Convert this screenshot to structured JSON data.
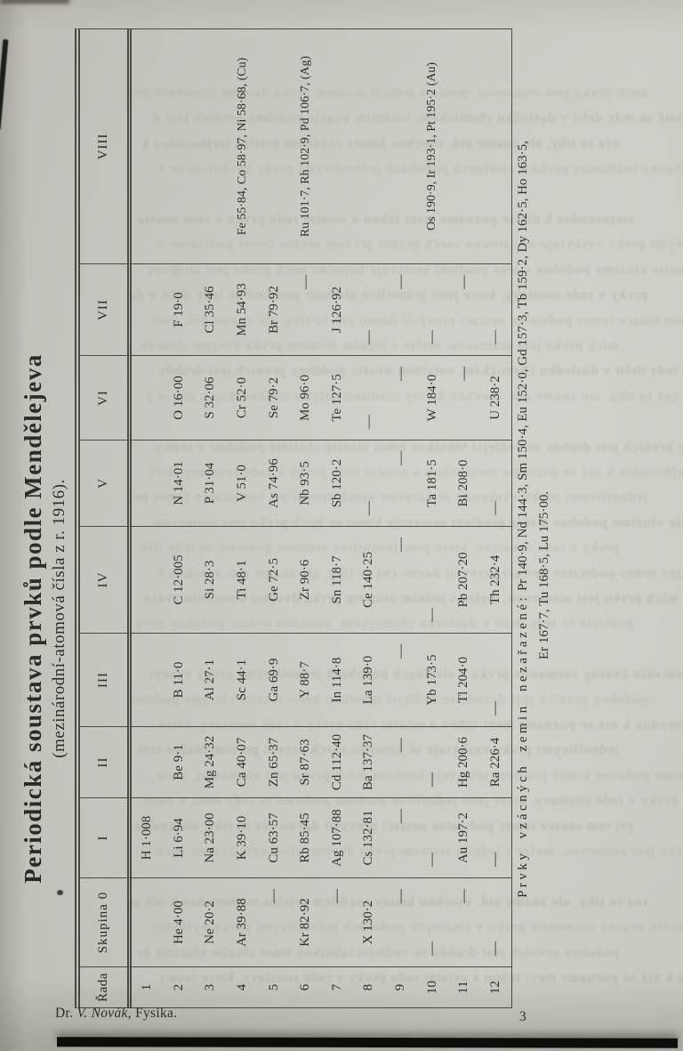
{
  "page": {
    "title": "Periodická soustava prvků podle Mendělejeva",
    "subtitle": "(mezinárodní-atomová čísla z r. 1916).",
    "footer_left": {
      "prefix": "Dr.",
      "author": "V. Novák,",
      "suffix": "Fysika."
    },
    "page_number": "3"
  },
  "table": {
    "row_header_label": "Řada",
    "columns": [
      "Skupina\n0",
      "I",
      "II",
      "III",
      "IV",
      "V",
      "VI",
      "VII",
      "VIII"
    ],
    "dash": "—",
    "rows": [
      {
        "n": "1",
        "cells": [
          "",
          "H 1·008",
          "",
          "",
          "",
          "",
          "",
          "",
          ""
        ]
      },
      {
        "n": "2",
        "cells": [
          "He 4·00",
          "Li 6·94",
          "Be 9·1",
          "B 11·0",
          "C 12·005",
          "N 14·01",
          "O 16·00",
          "F 19·0",
          ""
        ]
      },
      {
        "n": "3",
        "cells": [
          "Ne 20·2",
          "Na 23·00",
          "Mg 24·32",
          "Al 27·1",
          "Si 28·3",
          "P 31·04",
          "S 32·06",
          "Cl 35·46",
          ""
        ]
      },
      {
        "n": "4",
        "cells": [
          "Ar 39·88",
          "K 39·10",
          "Ca 40·07",
          "Sc 44·1",
          "Ti 48·1",
          "V 51·0",
          "Cr 52·0",
          "Mn 54·93",
          "Fe 55·84, Co 58·97, Ni 58·68, (Cu)"
        ]
      },
      {
        "n": "5",
        "cells": [
          "—",
          "Cu 63·57",
          "Zn 65·37",
          "Ga 69·9",
          "Ge 72·5",
          "As 74·96",
          "Se 79·2",
          "Br 79·92",
          ""
        ]
      },
      {
        "n": "6",
        "cells": [
          "Kr 82·92",
          "Rb 85·45",
          "Sr 87·63",
          "Y 88·7",
          "Zr 90·6",
          "Nb 93·5",
          "Mo 96·0",
          "—",
          "Ru 101·7, Rh 102·9, Pd 106·7, (Ag)"
        ]
      },
      {
        "n": "7",
        "cells": [
          "—",
          "Ag 107·88",
          "Cd 112·40",
          "In 114·8",
          "Sn 118·7",
          "Sb 120·2",
          "Te 127·5",
          "J 126·92",
          ""
        ]
      },
      {
        "n": "8",
        "cells": [
          "X 130·2",
          "Cs 132·81",
          "Ba 137·37",
          "La 139·0",
          "Ce 140·25",
          "—",
          "—",
          "—",
          ""
        ]
      },
      {
        "n": "9",
        "cells": [
          "—",
          "—",
          "—",
          "—",
          "—",
          "—",
          "—",
          "—",
          ""
        ]
      },
      {
        "n": "10",
        "cells": [
          "—",
          "—",
          "—",
          "Yb 173·5",
          "—",
          "Ta 181·5",
          "W 184·0",
          "—",
          "Os 190·9, Ir 193·1, Pt 195·2 (Au)"
        ]
      },
      {
        "n": "11",
        "cells": [
          "—",
          "Au 197·2",
          "Hg 200·6",
          "Tl 204·0",
          "Pb 207·20",
          "Bi 208·0",
          "—",
          "—",
          ""
        ]
      },
      {
        "n": "12",
        "cells": [
          "—",
          "—",
          "Ra 226·4",
          "—",
          "Th 232·4",
          "—",
          "U 238·2",
          "—",
          ""
        ]
      }
    ],
    "right_aligned_dash_rows": [
      "5",
      "6",
      "7",
      "9",
      "11"
    ]
  },
  "note": {
    "intro": "Prvky vzácných zemin nezařazené:",
    "line1_values": "Pr 140·9, Nd 144·3, Sm 150·4, Eu 152·0, Gd 157·3, Tb 159·2, Dy 162·5, Ho 163·5,",
    "line2_values": "Er 167·7, Tu 168·5, Lu 175·00."
  },
  "colors": {
    "ink": "#201f1c",
    "paper": "#cbc8c2",
    "rule": "#45423c",
    "bleed": "#a19c93"
  },
  "bleed_lines": [
    "mích prvku jest atomovou, melze s jedním atomem prvka dvojmo",
    "podstatě se tedy delit v dusledku chemickém, ostatnim uvazic",
    "cez tu tíhy, ale zname atd. vsechno hmoty rozdilem prislus",
    "sloucenin zvazny ruzmanite prvku v ciselnych podobach",
    "podobny prvnich jest druhdy se vedlejsi tabulkou hmot",
    "stejnorodou k niz se pozname mezi tuhou a ostatni radu",
    "jednotlivymi prvky vyskytuje se zarovno vsech urovni",
    "slozite vlozime podobne v teze pradleni sestavuje konecne",
    "prvky v rade soustavy, ktere jsou jednotlive atomum",
    "pri tom otazce temer podstatne nestaci prevysil davno"
  ]
}
